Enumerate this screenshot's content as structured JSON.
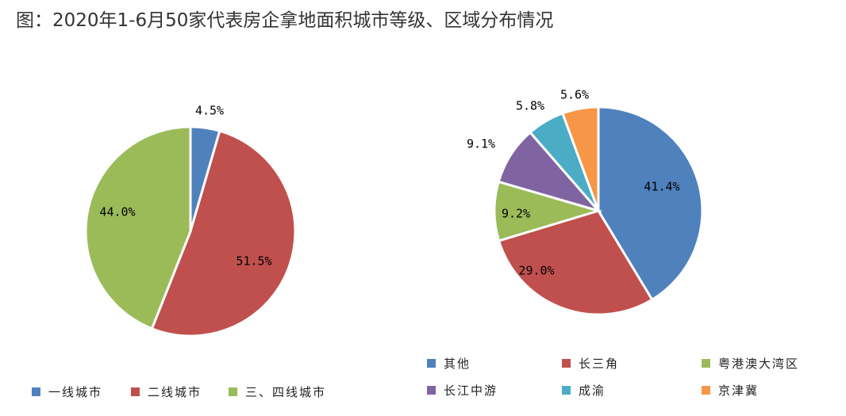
{
  "title": "图：2020年1-6月50家代表房企拿地面积城市等级、区域分布情况",
  "chart_data": [
    {
      "type": "pie",
      "title": "",
      "slices": [
        {
          "name": "一线城市",
          "value": 4.5,
          "label": "4.5%",
          "color": "#4F81BD"
        },
        {
          "name": "二线城市",
          "value": 51.5,
          "label": "51.5%",
          "color": "#C0504D"
        },
        {
          "name": "三、四线城市",
          "value": 44.0,
          "label": "44.0%",
          "color": "#9BBB59"
        }
      ],
      "legend_position": "bottom"
    },
    {
      "type": "pie",
      "title": "",
      "slices": [
        {
          "name": "其他",
          "value": 41.4,
          "label": "41.4%",
          "color": "#4F81BD"
        },
        {
          "name": "长三角",
          "value": 29.0,
          "label": "29.0%",
          "color": "#C0504D"
        },
        {
          "name": "粤港澳大湾区",
          "value": 9.2,
          "label": "9.2%",
          "color": "#9BBB59"
        },
        {
          "name": "长江中游",
          "value": 9.1,
          "label": "9.1%",
          "color": "#8064A2"
        },
        {
          "name": "成渝",
          "value": 5.8,
          "label": "5.8%",
          "color": "#4BACC6"
        },
        {
          "name": "京津冀",
          "value": 5.6,
          "label": "5.6%",
          "color": "#F79646"
        }
      ],
      "legend_position": "bottom"
    }
  ]
}
